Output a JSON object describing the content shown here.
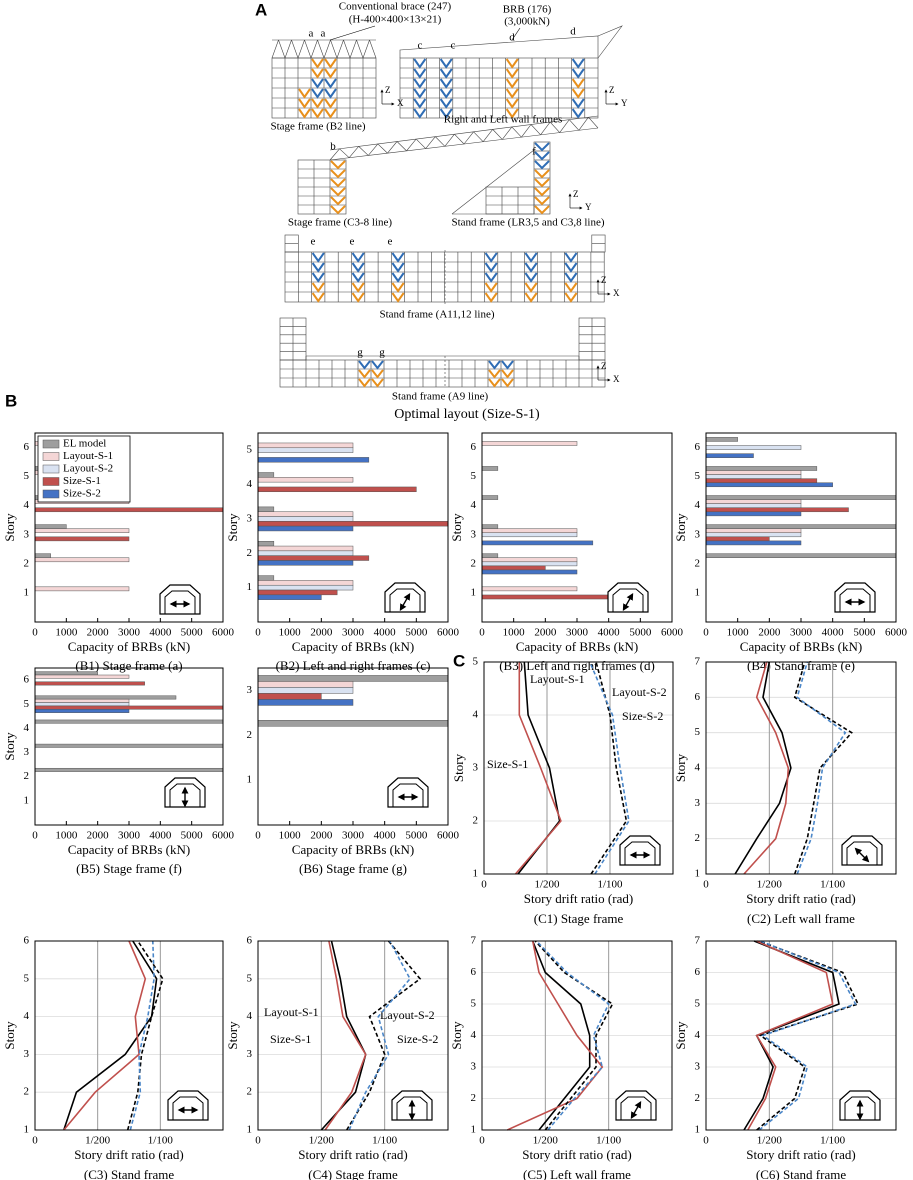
{
  "panel_labels": [
    "A",
    "B",
    "C"
  ],
  "diagram": {
    "brace_label": [
      "Conventional brace (247)",
      "(H-400×400×13×21)"
    ],
    "brb_label": [
      "BRB (176)",
      "(3,000kN)"
    ],
    "frame_letters": [
      "a",
      "a",
      "c",
      "c",
      "d",
      "d",
      "b",
      "f",
      "e",
      "e",
      "e",
      "g",
      "g"
    ],
    "axis_labels": [
      "Z",
      "X",
      "Z",
      "Y",
      "Z",
      "Y",
      "Z",
      "X",
      "Z",
      "X"
    ],
    "captions": [
      "Stage frame (B2 line)",
      "Right and Left wall frames",
      "Stage frame (C3-8 line)",
      "Stand frame (LR3,5 and C3,8 line)",
      "Stand frame (A11,12 line)",
      "Stand frame (A9 line)"
    ],
    "title": "Optimal layout (Size-S-1)"
  },
  "chart_data": [
    {
      "type": "hbar",
      "caption": "(B1) Stage frame (a)",
      "xlabel": "Capacity of BRBs (kN)",
      "ylabel": "Story",
      "categories": [
        "1",
        "2",
        "3",
        "4",
        "5",
        "6"
      ],
      "xlim": [
        0,
        6000
      ],
      "xticks": [
        0,
        1000,
        2000,
        3000,
        4000,
        5000,
        6000
      ],
      "legend": true,
      "series": [
        {
          "name": "EL model",
          "color": "#9e9e9e",
          "values": [
            null,
            500,
            1000,
            500,
            500,
            null
          ]
        },
        {
          "name": "Layout-S-1",
          "color": "#f4d6d6",
          "values": [
            3000,
            3000,
            3000,
            3000,
            3000,
            3000
          ]
        },
        {
          "name": "Layout-S-2",
          "color": "#d9e2f1",
          "values": [
            null,
            null,
            null,
            null,
            null,
            null
          ]
        },
        {
          "name": "Size-S-1",
          "color": "#c0504d",
          "values": [
            null,
            null,
            3000,
            6000,
            null,
            null
          ]
        },
        {
          "name": "Size-S-2",
          "color": "#4472c4",
          "values": [
            null,
            null,
            null,
            null,
            null,
            null
          ]
        }
      ]
    },
    {
      "type": "hbar",
      "caption": "(B2) Left and right frames (c)",
      "xlabel": "Capacity of BRBs (kN)",
      "ylabel": "Story",
      "categories": [
        "1",
        "2",
        "3",
        "4",
        "5"
      ],
      "xlim": [
        0,
        6000
      ],
      "xticks": [
        0,
        1000,
        2000,
        3000,
        4000,
        5000,
        6000
      ],
      "series": [
        {
          "color": "#9e9e9e",
          "values": [
            500,
            500,
            500,
            500,
            null
          ]
        },
        {
          "color": "#f4d6d6",
          "values": [
            3000,
            3000,
            3000,
            3000,
            3000
          ]
        },
        {
          "color": "#d9e2f1",
          "values": [
            3000,
            3000,
            3000,
            null,
            3000
          ]
        },
        {
          "color": "#c0504d",
          "values": [
            2500,
            3500,
            6000,
            5000,
            null
          ]
        },
        {
          "color": "#4472c4",
          "values": [
            2000,
            3000,
            3000,
            null,
            3500
          ]
        }
      ]
    },
    {
      "type": "hbar",
      "caption": "(B3) Left and right frames (d)",
      "xlabel": "Capacity of BRBs (kN)",
      "ylabel": "Story",
      "categories": [
        "1",
        "2",
        "3",
        "4",
        "5",
        "6"
      ],
      "xlim": [
        0,
        6000
      ],
      "xticks": [
        0,
        1000,
        2000,
        3000,
        4000,
        5000,
        6000
      ],
      "series": [
        {
          "color": "#9e9e9e",
          "values": [
            null,
            500,
            500,
            500,
            500,
            null
          ]
        },
        {
          "color": "#f4d6d6",
          "values": [
            3000,
            3000,
            3000,
            null,
            null,
            3000
          ]
        },
        {
          "color": "#d9e2f1",
          "values": [
            null,
            3000,
            3000,
            null,
            null,
            null
          ]
        },
        {
          "color": "#c0504d",
          "values": [
            5000,
            2000,
            null,
            null,
            null,
            null
          ]
        },
        {
          "color": "#4472c4",
          "values": [
            null,
            3000,
            3500,
            null,
            null,
            null
          ]
        }
      ]
    },
    {
      "type": "hbar",
      "caption": "(B4) Stand frame (e)",
      "xlabel": "Capacity of BRBs (kN)",
      "ylabel": "Story",
      "categories": [
        "1",
        "2",
        "3",
        "4",
        "5",
        "6"
      ],
      "xlim": [
        0,
        6000
      ],
      "xticks": [
        0,
        1000,
        2000,
        3000,
        4000,
        5000,
        6000
      ],
      "series": [
        {
          "color": "#9e9e9e",
          "values": [
            null,
            6000,
            6000,
            6000,
            3500,
            1000
          ]
        },
        {
          "color": "#f4d6d6",
          "values": [
            null,
            null,
            3000,
            3000,
            3000,
            null
          ]
        },
        {
          "color": "#d9e2f1",
          "values": [
            null,
            null,
            3000,
            3000,
            3000,
            3000
          ]
        },
        {
          "color": "#c0504d",
          "values": [
            null,
            null,
            2000,
            4500,
            3500,
            null
          ]
        },
        {
          "color": "#4472c4",
          "values": [
            null,
            null,
            3000,
            3000,
            4000,
            1500
          ]
        }
      ]
    },
    {
      "type": "hbar",
      "caption": "(B5) Stage frame (f)",
      "xlabel": "Capacity of BRBs (kN)",
      "ylabel": "Story",
      "categories": [
        "1",
        "2",
        "3",
        "4",
        "5",
        "6"
      ],
      "xlim": [
        0,
        6000
      ],
      "xticks": [
        0,
        1000,
        2000,
        3000,
        4000,
        5000,
        6000
      ],
      "series": [
        {
          "color": "#9e9e9e",
          "values": [
            null,
            6000,
            6000,
            6000,
            4500,
            2000
          ]
        },
        {
          "color": "#f4d6d6",
          "values": [
            null,
            null,
            null,
            null,
            3000,
            3000
          ]
        },
        {
          "color": "#d9e2f1",
          "values": [
            null,
            null,
            null,
            null,
            3000,
            null
          ]
        },
        {
          "color": "#c0504d",
          "values": [
            null,
            null,
            null,
            null,
            6000,
            3500
          ]
        },
        {
          "color": "#4472c4",
          "values": [
            null,
            null,
            null,
            null,
            3000,
            null
          ]
        }
      ]
    },
    {
      "type": "hbar",
      "caption": "(B6) Stage frame (g)",
      "xlabel": "Capacity of BRBs (kN)",
      "categories": [
        "1",
        "2",
        "3"
      ],
      "xlim": [
        0,
        6000
      ],
      "xticks": [
        0,
        1000,
        2000,
        3000,
        4000,
        5000,
        6000
      ],
      "series": [
        {
          "color": "#9e9e9e",
          "values": [
            null,
            6000,
            6000
          ]
        },
        {
          "color": "#f4d6d6",
          "values": [
            null,
            null,
            3000
          ]
        },
        {
          "color": "#d9e2f1",
          "values": [
            null,
            null,
            3000
          ]
        },
        {
          "color": "#c0504d",
          "values": [
            null,
            null,
            2000
          ]
        },
        {
          "color": "#4472c4",
          "values": [
            null,
            null,
            3000
          ]
        }
      ]
    },
    {
      "type": "line",
      "caption": "(C1) Stage frame",
      "xlabel": "Story drift ratio (rad)",
      "ylabel": "Story",
      "xlim": [
        0,
        0.015
      ],
      "xticks": [
        0,
        {
          "value": 0.005,
          "label": "1/200"
        },
        {
          "value": 0.01,
          "label": "1/100"
        }
      ],
      "ylim": [
        1,
        5
      ],
      "yticks": [
        1,
        2,
        3,
        4,
        5
      ],
      "y": [
        1,
        2,
        3,
        4,
        5
      ],
      "grid": true,
      "series": [
        {
          "name": "Layout-S-1",
          "color": "#000000",
          "style": "solid",
          "values": [
            0.0027,
            0.006,
            0.0052,
            0.0035,
            0.0032
          ]
        },
        {
          "name": "Size-S-1",
          "color": "#c0504d",
          "style": "solid",
          "values": [
            0.0025,
            0.0061,
            0.0045,
            0.0028,
            0.0028
          ]
        },
        {
          "name": "Layout-S-2",
          "color": "#000000",
          "style": "dashed",
          "values": [
            0.0085,
            0.0113,
            0.0105,
            0.01,
            0.0089
          ]
        },
        {
          "name": "Size-S-2",
          "color": "#4a86c8",
          "style": "dashed",
          "values": [
            0.0088,
            0.0115,
            0.0108,
            0.0102,
            0.0084
          ]
        }
      ]
    },
    {
      "type": "line",
      "caption": "(C2) Left wall frame",
      "xlabel": "Story drift ratio (rad)",
      "ylabel": "Story",
      "xlim": [
        0,
        0.015
      ],
      "xticks": [
        0,
        {
          "value": 0.005,
          "label": "1/200"
        },
        {
          "value": 0.01,
          "label": "1/100"
        }
      ],
      "ylim": [
        1,
        7
      ],
      "yticks": [
        1,
        2,
        3,
        4,
        5,
        6,
        7
      ],
      "y": [
        1,
        2,
        3,
        4,
        5,
        6,
        7
      ],
      "grid": true,
      "series": [
        {
          "color": "#000000",
          "style": "solid",
          "values": [
            0.0023,
            0.004,
            0.0058,
            0.0067,
            0.006,
            0.0045,
            0.005
          ]
        },
        {
          "color": "#c0504d",
          "style": "solid",
          "values": [
            0.003,
            0.0055,
            0.0063,
            0.0065,
            0.0055,
            0.004,
            0.0048
          ]
        },
        {
          "color": "#000000",
          "style": "dashed",
          "values": [
            0.007,
            0.008,
            0.0085,
            0.009,
            0.0115,
            0.007,
            0.0078
          ]
        },
        {
          "color": "#4a86c8",
          "style": "dashed",
          "values": [
            0.0072,
            0.0083,
            0.0088,
            0.0092,
            0.011,
            0.0072,
            0.008
          ]
        }
      ]
    },
    {
      "type": "line",
      "caption": "(C3) Stand frame",
      "xlabel": "Story drift ratio (rad)",
      "ylabel": "Story",
      "xlim": [
        0,
        0.015
      ],
      "xticks": [
        0,
        {
          "value": 0.005,
          "label": "1/200"
        },
        {
          "value": 0.01,
          "label": "1/100"
        }
      ],
      "ylim": [
        1,
        6
      ],
      "yticks": [
        1,
        2,
        3,
        4,
        5,
        6
      ],
      "y": [
        1,
        2,
        3,
        4,
        5,
        6
      ],
      "grid": true,
      "series": [
        {
          "color": "#000000",
          "style": "solid",
          "values": [
            0.0023,
            0.0033,
            0.0072,
            0.0093,
            0.0097,
            0.0078
          ]
        },
        {
          "color": "#c0504d",
          "style": "solid",
          "values": [
            0.0023,
            0.0048,
            0.0083,
            0.008,
            0.0088,
            0.0075
          ]
        },
        {
          "color": "#000000",
          "style": "dashed",
          "values": [
            0.0074,
            0.0082,
            0.0085,
            0.0093,
            0.0102,
            0.0082
          ]
        },
        {
          "color": "#4a86c8",
          "style": "dashed",
          "values": [
            0.0076,
            0.0084,
            0.0083,
            0.009,
            0.0095,
            0.0094
          ]
        }
      ]
    },
    {
      "type": "line",
      "caption": "(C4) Stage frame",
      "xlabel": "Story drift ratio (rad)",
      "ylabel": "Story",
      "xlim": [
        0,
        0.015
      ],
      "xticks": [
        0,
        {
          "value": 0.005,
          "label": "1/200"
        },
        {
          "value": 0.01,
          "label": "1/100"
        }
      ],
      "ylim": [
        1,
        6
      ],
      "yticks": [
        1,
        2,
        3,
        4,
        5,
        6
      ],
      "y": [
        1,
        2,
        3,
        4,
        5,
        6
      ],
      "grid": true,
      "series": [
        {
          "name": "Layout-S-1",
          "color": "#000000",
          "style": "solid",
          "values": [
            0.005,
            0.0077,
            0.0085,
            0.007,
            0.0065,
            0.0058
          ]
        },
        {
          "name": "Size-S-1",
          "color": "#c0504d",
          "style": "solid",
          "values": [
            0.0053,
            0.0074,
            0.0085,
            0.0067,
            0.0062,
            0.0056
          ]
        },
        {
          "name": "Layout-S-2",
          "color": "#000000",
          "style": "dashed",
          "values": [
            0.007,
            0.0088,
            0.01,
            0.0088,
            0.0128,
            0.0103
          ]
        },
        {
          "name": "Size-S-2",
          "color": "#4a86c8",
          "style": "dashed",
          "values": [
            0.0072,
            0.0085,
            0.0103,
            0.0095,
            0.012,
            0.0104
          ]
        }
      ]
    },
    {
      "type": "line",
      "caption": "(C5) Left wall frame",
      "xlabel": "Story drift ratio (rad)",
      "ylabel": "Story",
      "xlim": [
        0,
        0.015
      ],
      "xticks": [
        0,
        {
          "value": 0.005,
          "label": "1/200"
        },
        {
          "value": 0.01,
          "label": "1/100"
        }
      ],
      "ylim": [
        1,
        7
      ],
      "yticks": [
        1,
        2,
        3,
        4,
        5,
        6,
        7
      ],
      "y": [
        1,
        2,
        3,
        4,
        5,
        6,
        7
      ],
      "grid": true,
      "series": [
        {
          "color": "#000000",
          "style": "solid",
          "values": [
            0.0045,
            0.0065,
            0.0085,
            0.0085,
            0.0078,
            0.005,
            0.004
          ]
        },
        {
          "color": "#c0504d",
          "style": "solid",
          "values": [
            0.002,
            0.0075,
            0.0095,
            0.0075,
            0.006,
            0.0045,
            0.004
          ]
        },
        {
          "color": "#000000",
          "style": "dashed",
          "values": [
            0.005,
            0.007,
            0.009,
            0.009,
            0.0103,
            0.0065,
            0.0042
          ]
        },
        {
          "color": "#4a86c8",
          "style": "dashed",
          "values": [
            0.0052,
            0.0073,
            0.0095,
            0.0088,
            0.01,
            0.0067,
            0.0043
          ]
        }
      ]
    },
    {
      "type": "line",
      "caption": "(C6) Stand frame",
      "xlabel": "Story drift ratio (rad)",
      "ylabel": "Story",
      "xlim": [
        0,
        0.015
      ],
      "xticks": [
        0,
        {
          "value": 0.005,
          "label": "1/200"
        },
        {
          "value": 0.01,
          "label": "1/100"
        }
      ],
      "ylim": [
        1,
        7
      ],
      "yticks": [
        1,
        2,
        3,
        4,
        5,
        6,
        7
      ],
      "y": [
        1,
        2,
        3,
        4,
        5,
        6,
        7
      ],
      "grid": true,
      "series": [
        {
          "color": "#000000",
          "style": "solid",
          "values": [
            0.003,
            0.0045,
            0.0053,
            0.004,
            0.0105,
            0.01,
            0.0038
          ]
        },
        {
          "color": "#c0504d",
          "style": "solid",
          "values": [
            0.0033,
            0.0047,
            0.0055,
            0.004,
            0.01,
            0.0095,
            0.004
          ]
        },
        {
          "color": "#000000",
          "style": "dashed",
          "values": [
            0.004,
            0.007,
            0.0078,
            0.0043,
            0.012,
            0.0108,
            0.0042
          ]
        },
        {
          "color": "#4a86c8",
          "style": "dashed",
          "values": [
            0.0042,
            0.0073,
            0.008,
            0.0045,
            0.0118,
            0.0105,
            0.0043
          ]
        }
      ]
    }
  ]
}
